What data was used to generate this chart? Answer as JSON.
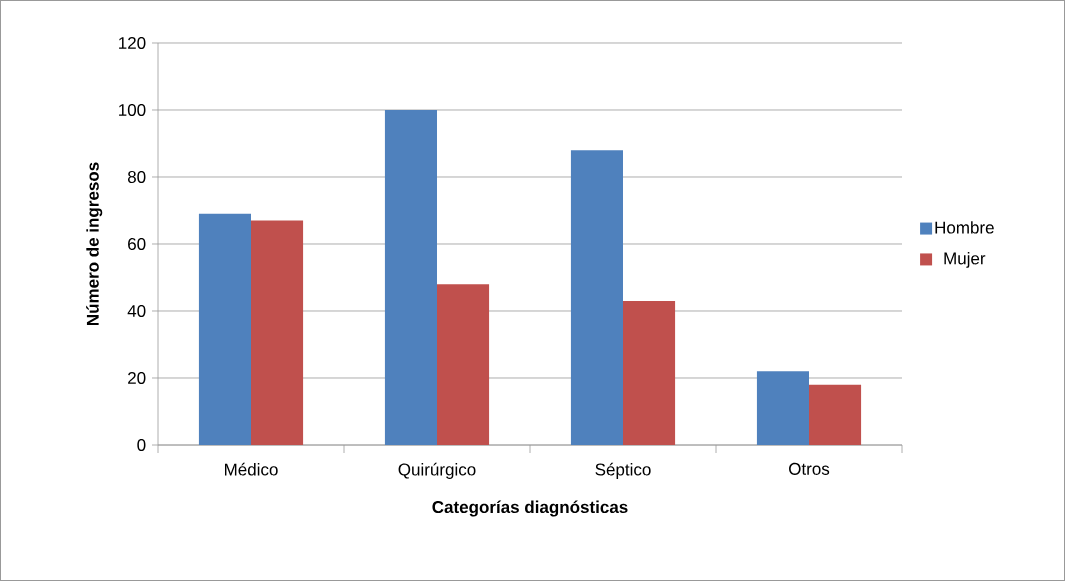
{
  "chart_data": {
    "type": "bar",
    "xlabel": "Categorías diagnósticas",
    "ylabel": "Número de ingresos",
    "categories": [
      "Médico",
      "Quirúrgico",
      "Séptico",
      "Otros"
    ],
    "series": [
      {
        "name": "Hombre",
        "color": "#4f81bd",
        "values": [
          69,
          100,
          88,
          22
        ]
      },
      {
        "name": "Mujer",
        "color": "#c0504d",
        "values": [
          67,
          48,
          43,
          18
        ]
      }
    ],
    "ylim": [
      0,
      120
    ],
    "yticks": [
      0,
      20,
      40,
      60,
      80,
      100,
      120
    ],
    "grid": "y",
    "legend": "right"
  }
}
